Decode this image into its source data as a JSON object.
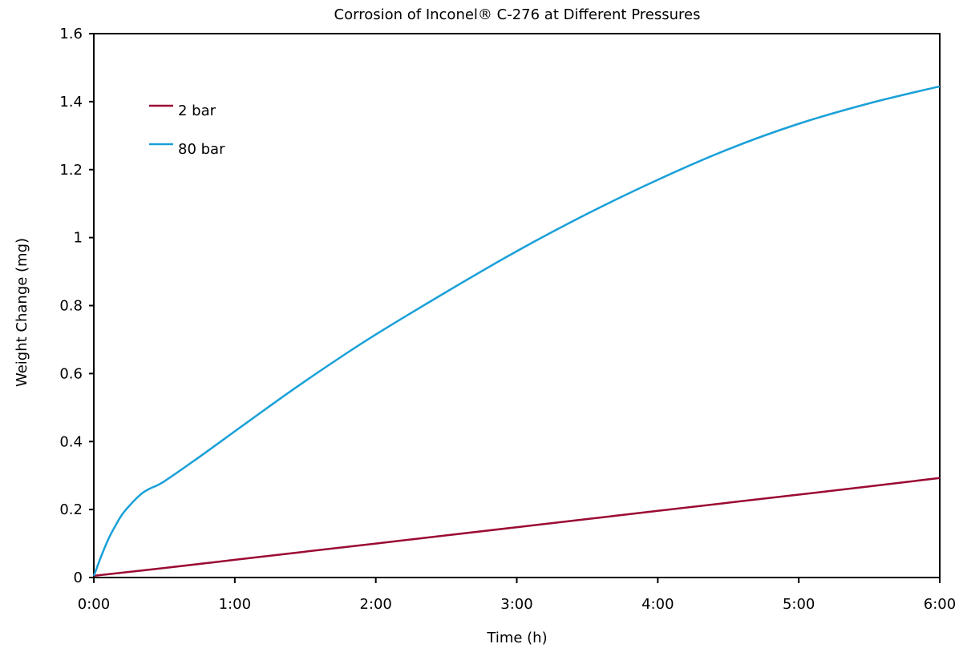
{
  "chart_data": {
    "type": "line",
    "title": "Corrosion of Inconel® C-276 at Different Pressures",
    "xlabel": "Time (h)",
    "ylabel": "Weight Change (mg)",
    "xlim": [
      0,
      6
    ],
    "ylim": [
      0,
      1.6
    ],
    "x_ticks": [
      {
        "value": 0,
        "label": "0:00"
      },
      {
        "value": 1,
        "label": "1:00"
      },
      {
        "value": 2,
        "label": "2:00"
      },
      {
        "value": 3,
        "label": "3:00"
      },
      {
        "value": 4,
        "label": "4:00"
      },
      {
        "value": 5,
        "label": "5:00"
      },
      {
        "value": 6,
        "label": "6:00"
      }
    ],
    "y_ticks": [
      {
        "value": 0,
        "label": "0"
      },
      {
        "value": 0.2,
        "label": "0.2"
      },
      {
        "value": 0.4,
        "label": "0.4"
      },
      {
        "value": 0.6,
        "label": "0.6"
      },
      {
        "value": 0.8,
        "label": "0.8"
      },
      {
        "value": 1.0,
        "label": "1"
      },
      {
        "value": 1.2,
        "label": "1.2"
      },
      {
        "value": 1.4,
        "label": "1.4"
      },
      {
        "value": 1.6,
        "label": "1.6"
      }
    ],
    "grid": false,
    "legend_position": "top-left",
    "series": [
      {
        "name": "2 bar",
        "color": "#9b0a33",
        "x": [
          0,
          0.5,
          1,
          1.5,
          2,
          2.5,
          3,
          3.5,
          4,
          4.5,
          5,
          5.5,
          6
        ],
        "y": [
          0.005,
          0.028,
          0.052,
          0.076,
          0.1,
          0.124,
          0.148,
          0.172,
          0.196,
          0.22,
          0.244,
          0.268,
          0.293
        ]
      },
      {
        "name": "80 bar",
        "color": "#1aa0d8",
        "x": [
          0,
          0.05,
          0.1,
          0.15,
          0.2,
          0.25,
          0.3,
          0.35,
          0.4,
          0.5,
          0.75,
          1,
          1.25,
          1.5,
          1.75,
          2,
          2.5,
          3,
          3.5,
          4,
          4.5,
          5,
          5.5,
          6
        ],
        "y": [
          0.005,
          0.06,
          0.11,
          0.15,
          0.185,
          0.21,
          0.232,
          0.25,
          0.262,
          0.283,
          0.355,
          0.43,
          0.505,
          0.578,
          0.648,
          0.715,
          0.84,
          0.96,
          1.07,
          1.17,
          1.26,
          1.335,
          1.395,
          1.445
        ]
      }
    ]
  }
}
